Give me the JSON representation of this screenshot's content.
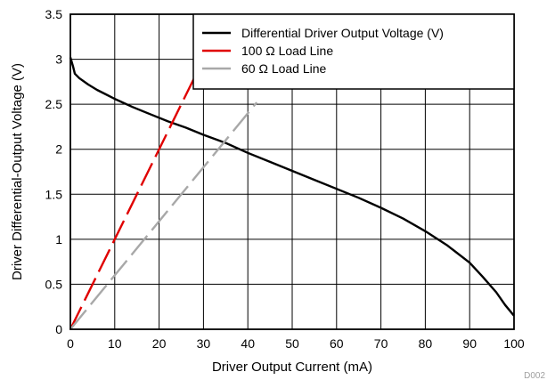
{
  "chart_data": {
    "type": "line",
    "title": "",
    "xlabel": "Driver Output Current (mA)",
    "ylabel": "Driver Differential-Output Voltage (V)",
    "xlim": [
      0,
      100
    ],
    "ylim": [
      0,
      3.5
    ],
    "x_ticks": [
      "0",
      "10",
      "20",
      "30",
      "40",
      "50",
      "60",
      "70",
      "80",
      "90",
      "100"
    ],
    "y_ticks": [
      "0",
      "0.5",
      "1",
      "1.5",
      "2",
      "2.5",
      "3",
      "3.5"
    ],
    "grid": true,
    "legend_position": "top-right",
    "figure_id": "D002",
    "series": [
      {
        "name": "Differential Driver Output Voltage (V)",
        "color": "#000000",
        "style": "solid",
        "points": [
          [
            0,
            3.02
          ],
          [
            0.6,
            2.92
          ],
          [
            1,
            2.84
          ],
          [
            2,
            2.79
          ],
          [
            4,
            2.72
          ],
          [
            6,
            2.66
          ],
          [
            8,
            2.61
          ],
          [
            10,
            2.56
          ],
          [
            14,
            2.47
          ],
          [
            18,
            2.39
          ],
          [
            22,
            2.31
          ],
          [
            26,
            2.24
          ],
          [
            30,
            2.16
          ],
          [
            35,
            2.07
          ],
          [
            40,
            1.96
          ],
          [
            45,
            1.86
          ],
          [
            50,
            1.76
          ],
          [
            55,
            1.66
          ],
          [
            60,
            1.56
          ],
          [
            65,
            1.46
          ],
          [
            70,
            1.35
          ],
          [
            75,
            1.23
          ],
          [
            80,
            1.09
          ],
          [
            85,
            0.93
          ],
          [
            90,
            0.74
          ],
          [
            93,
            0.58
          ],
          [
            96,
            0.41
          ],
          [
            98,
            0.27
          ],
          [
            100,
            0.15
          ]
        ]
      },
      {
        "name": "100 Ω Load Line",
        "color": "#e00000",
        "style": "dashed",
        "points": [
          [
            0,
            0
          ],
          [
            30,
            3.0
          ]
        ]
      },
      {
        "name": "60 Ω Load Line",
        "color": "#a8a8a8",
        "style": "dashed",
        "points": [
          [
            0,
            0
          ],
          [
            42,
            2.52
          ]
        ]
      }
    ]
  }
}
